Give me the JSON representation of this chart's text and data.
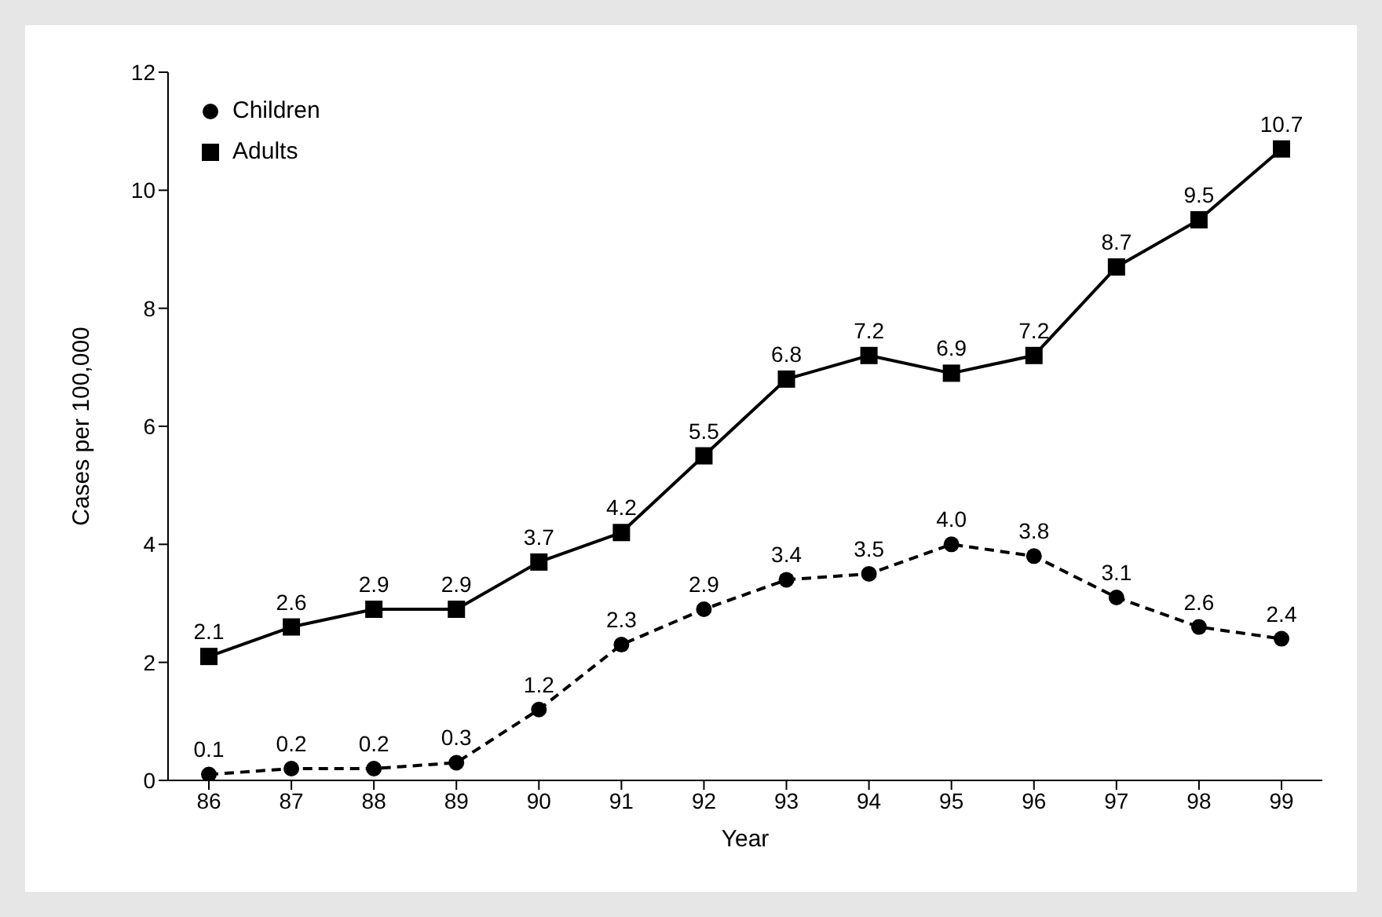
{
  "chart_data": {
    "type": "line",
    "xlabel": "Year",
    "ylabel": "Cases per 100,000",
    "categories": [
      "86",
      "87",
      "88",
      "89",
      "90",
      "91",
      "92",
      "93",
      "94",
      "95",
      "96",
      "97",
      "98",
      "99"
    ],
    "series": [
      {
        "name": "Children",
        "color": "#000000",
        "marker": "circle",
        "line_style": "dashed",
        "values": [
          0.1,
          0.2,
          0.2,
          0.3,
          1.2,
          2.3,
          2.9,
          3.4,
          3.5,
          4.0,
          3.8,
          3.1,
          2.6,
          2.4
        ]
      },
      {
        "name": "Adults",
        "color": "#000000",
        "marker": "square",
        "line_style": "solid",
        "values": [
          2.1,
          2.6,
          2.9,
          2.9,
          3.7,
          4.2,
          5.5,
          6.8,
          7.2,
          6.9,
          7.2,
          8.7,
          9.5,
          10.7
        ]
      }
    ],
    "value_labels": [
      [
        "0.1",
        "0.2",
        "0.2",
        "0.3",
        "1.2",
        "2.3",
        "2.9",
        "3.4",
        "3.5",
        "4.0",
        "3.8",
        "3.1",
        "2.6",
        "2.4"
      ],
      [
        "2.1",
        "2.6",
        "2.9",
        "2.9",
        "3.7",
        "4.2",
        "5.5",
        "6.8",
        "7.2",
        "6.9",
        "7.2",
        "8.7",
        "9.5",
        "10.7"
      ]
    ],
    "ylim": [
      0,
      12
    ],
    "yticks": [
      0,
      2,
      4,
      6,
      8,
      10,
      12
    ],
    "grid": false,
    "legend": "top left"
  }
}
